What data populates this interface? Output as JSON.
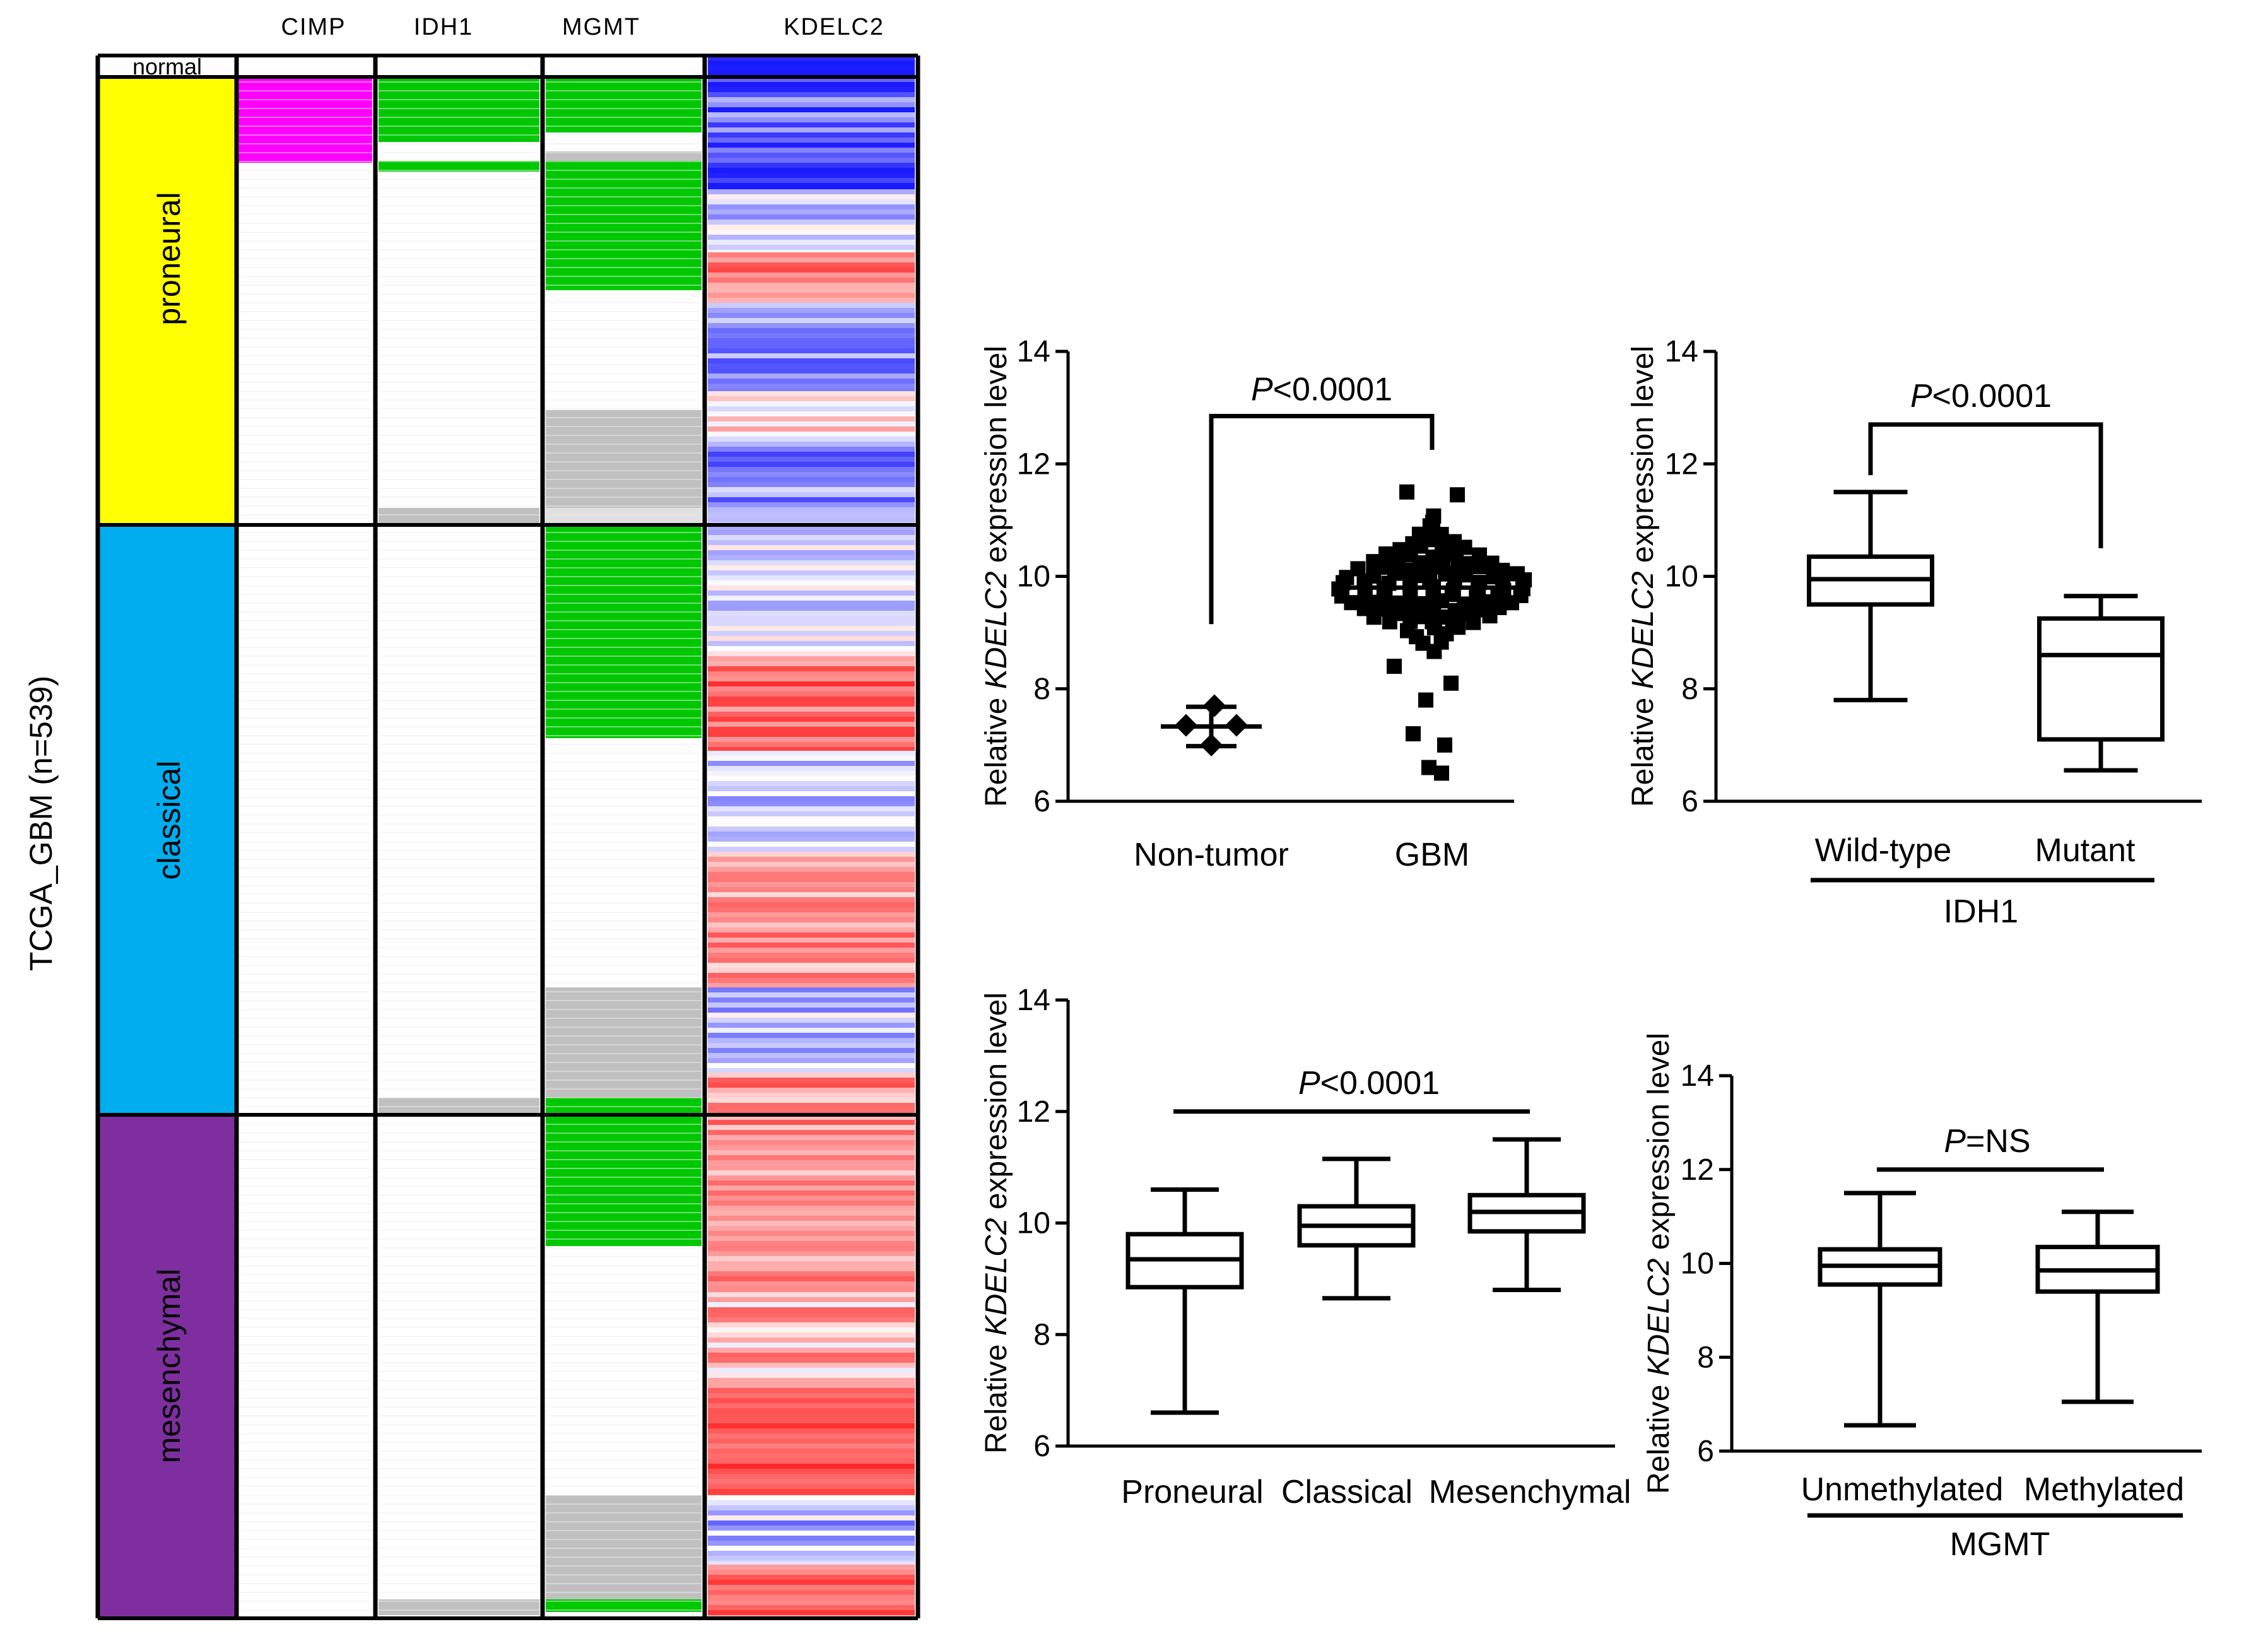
{
  "heatmap": {
    "side_label": "TCGA_GBM (n=539)",
    "columns": [
      "CIMP",
      "IDH1",
      "MGMT",
      "KDELC2"
    ],
    "normal_label": "normal",
    "subtypes": [
      {
        "name": "proneural",
        "color": "#ffff00"
      },
      {
        "name": "classical",
        "color": "#00aeef"
      },
      {
        "name": "mesenchymal",
        "color": "#7f2ea0"
      }
    ],
    "colors": {
      "cimp": "#ff00ff",
      "green": "#00c800",
      "gray": "#c0c0c0",
      "blue": "#1a1aff",
      "red": "#ff1a1a"
    }
  },
  "chart_data": [
    {
      "type": "scatter",
      "title": "",
      "ylabel_prefix": "Relative ",
      "ylabel_gene": "KDELC2",
      "ylabel_suffix": " expression level",
      "ylim": [
        6,
        14
      ],
      "yticks": [
        "6",
        "8",
        "10",
        "12",
        "14"
      ],
      "categories": [
        "Non-tumor",
        "GBM"
      ],
      "pvalue_p": "P",
      "pvalue_rest": "<0.0001",
      "series": [
        {
          "name": "Non-tumor",
          "mean": 7.33,
          "sd": 0.35,
          "points": [
            7.7,
            7.35,
            7.35,
            7.0
          ]
        },
        {
          "name": "GBM",
          "mean": 9.8,
          "sd": 0.6,
          "min": 6.5,
          "max": 11.5
        }
      ]
    },
    {
      "type": "box",
      "title": "",
      "ylabel_prefix": "Relative ",
      "ylabel_gene": "KDELC2",
      "ylabel_suffix": " expression level",
      "ylim": [
        6,
        14
      ],
      "yticks": [
        "6",
        "8",
        "10",
        "12",
        "14"
      ],
      "categories": [
        "Wild-type",
        "Mutant"
      ],
      "group_label": "IDH1",
      "pvalue_p": "P",
      "pvalue_rest": "<0.0001",
      "boxes": [
        {
          "name": "Wild-type",
          "min": 7.8,
          "q1": 9.5,
          "median": 9.95,
          "q3": 10.35,
          "max": 11.5
        },
        {
          "name": "Mutant",
          "min": 6.55,
          "q1": 7.1,
          "median": 8.6,
          "q3": 9.25,
          "max": 9.65
        }
      ]
    },
    {
      "type": "box",
      "title": "",
      "ylabel_prefix": "Relative ",
      "ylabel_gene": "KDELC2",
      "ylabel_suffix": " expression level",
      "ylim": [
        6,
        14
      ],
      "yticks": [
        "6",
        "8",
        "10",
        "12",
        "14"
      ],
      "categories": [
        "Proneural",
        "Classical",
        "Mesenchymal"
      ],
      "pvalue_p": "P",
      "pvalue_rest": "<0.0001",
      "boxes": [
        {
          "name": "Proneural",
          "min": 6.6,
          "q1": 8.85,
          "median": 9.35,
          "q3": 9.8,
          "max": 10.6
        },
        {
          "name": "Classical",
          "min": 8.65,
          "q1": 9.6,
          "median": 9.95,
          "q3": 10.3,
          "max": 11.15
        },
        {
          "name": "Mesenchymal",
          "min": 8.8,
          "q1": 9.85,
          "median": 10.2,
          "q3": 10.5,
          "max": 11.5
        }
      ]
    },
    {
      "type": "box",
      "title": "",
      "ylabel_prefix": "Relative ",
      "ylabel_gene": "KDELC2",
      "ylabel_suffix": " expression level",
      "ylim": [
        6,
        14
      ],
      "yticks": [
        "6",
        "8",
        "10",
        "12",
        "14"
      ],
      "categories": [
        "Unmethylated",
        "Methylated"
      ],
      "group_label": "MGMT",
      "pvalue_p": "P",
      "pvalue_rest": "=NS",
      "boxes": [
        {
          "name": "Unmethylated",
          "min": 6.55,
          "q1": 9.55,
          "median": 9.95,
          "q3": 10.3,
          "max": 11.5
        },
        {
          "name": "Methylated",
          "min": 7.05,
          "q1": 9.4,
          "median": 9.85,
          "q3": 10.35,
          "max": 11.1
        }
      ]
    }
  ]
}
